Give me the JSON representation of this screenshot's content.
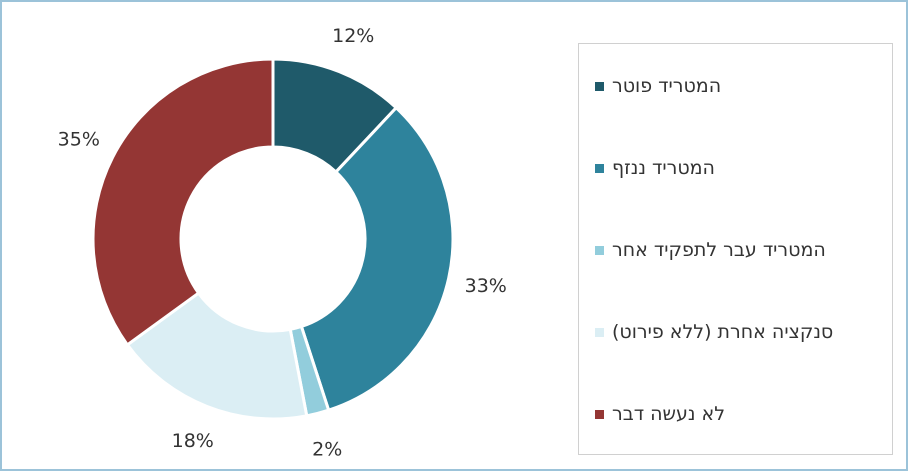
{
  "chart_data": {
    "type": "donut",
    "categories": [
      "המטריד פוטר",
      "המטריד ננזף",
      "המטריד עבר לתפקיד אחר",
      "סנקציה אחרת (ללא פירוט)",
      "לא נעשה דבר"
    ],
    "values": [
      12,
      33,
      2,
      18,
      35
    ],
    "value_labels": [
      "12%",
      "33%",
      "2%",
      "18%",
      "35%"
    ],
    "colors": [
      "#1f5a6a",
      "#2e839c",
      "#92cddc",
      "#dbeef4",
      "#943634"
    ]
  }
}
